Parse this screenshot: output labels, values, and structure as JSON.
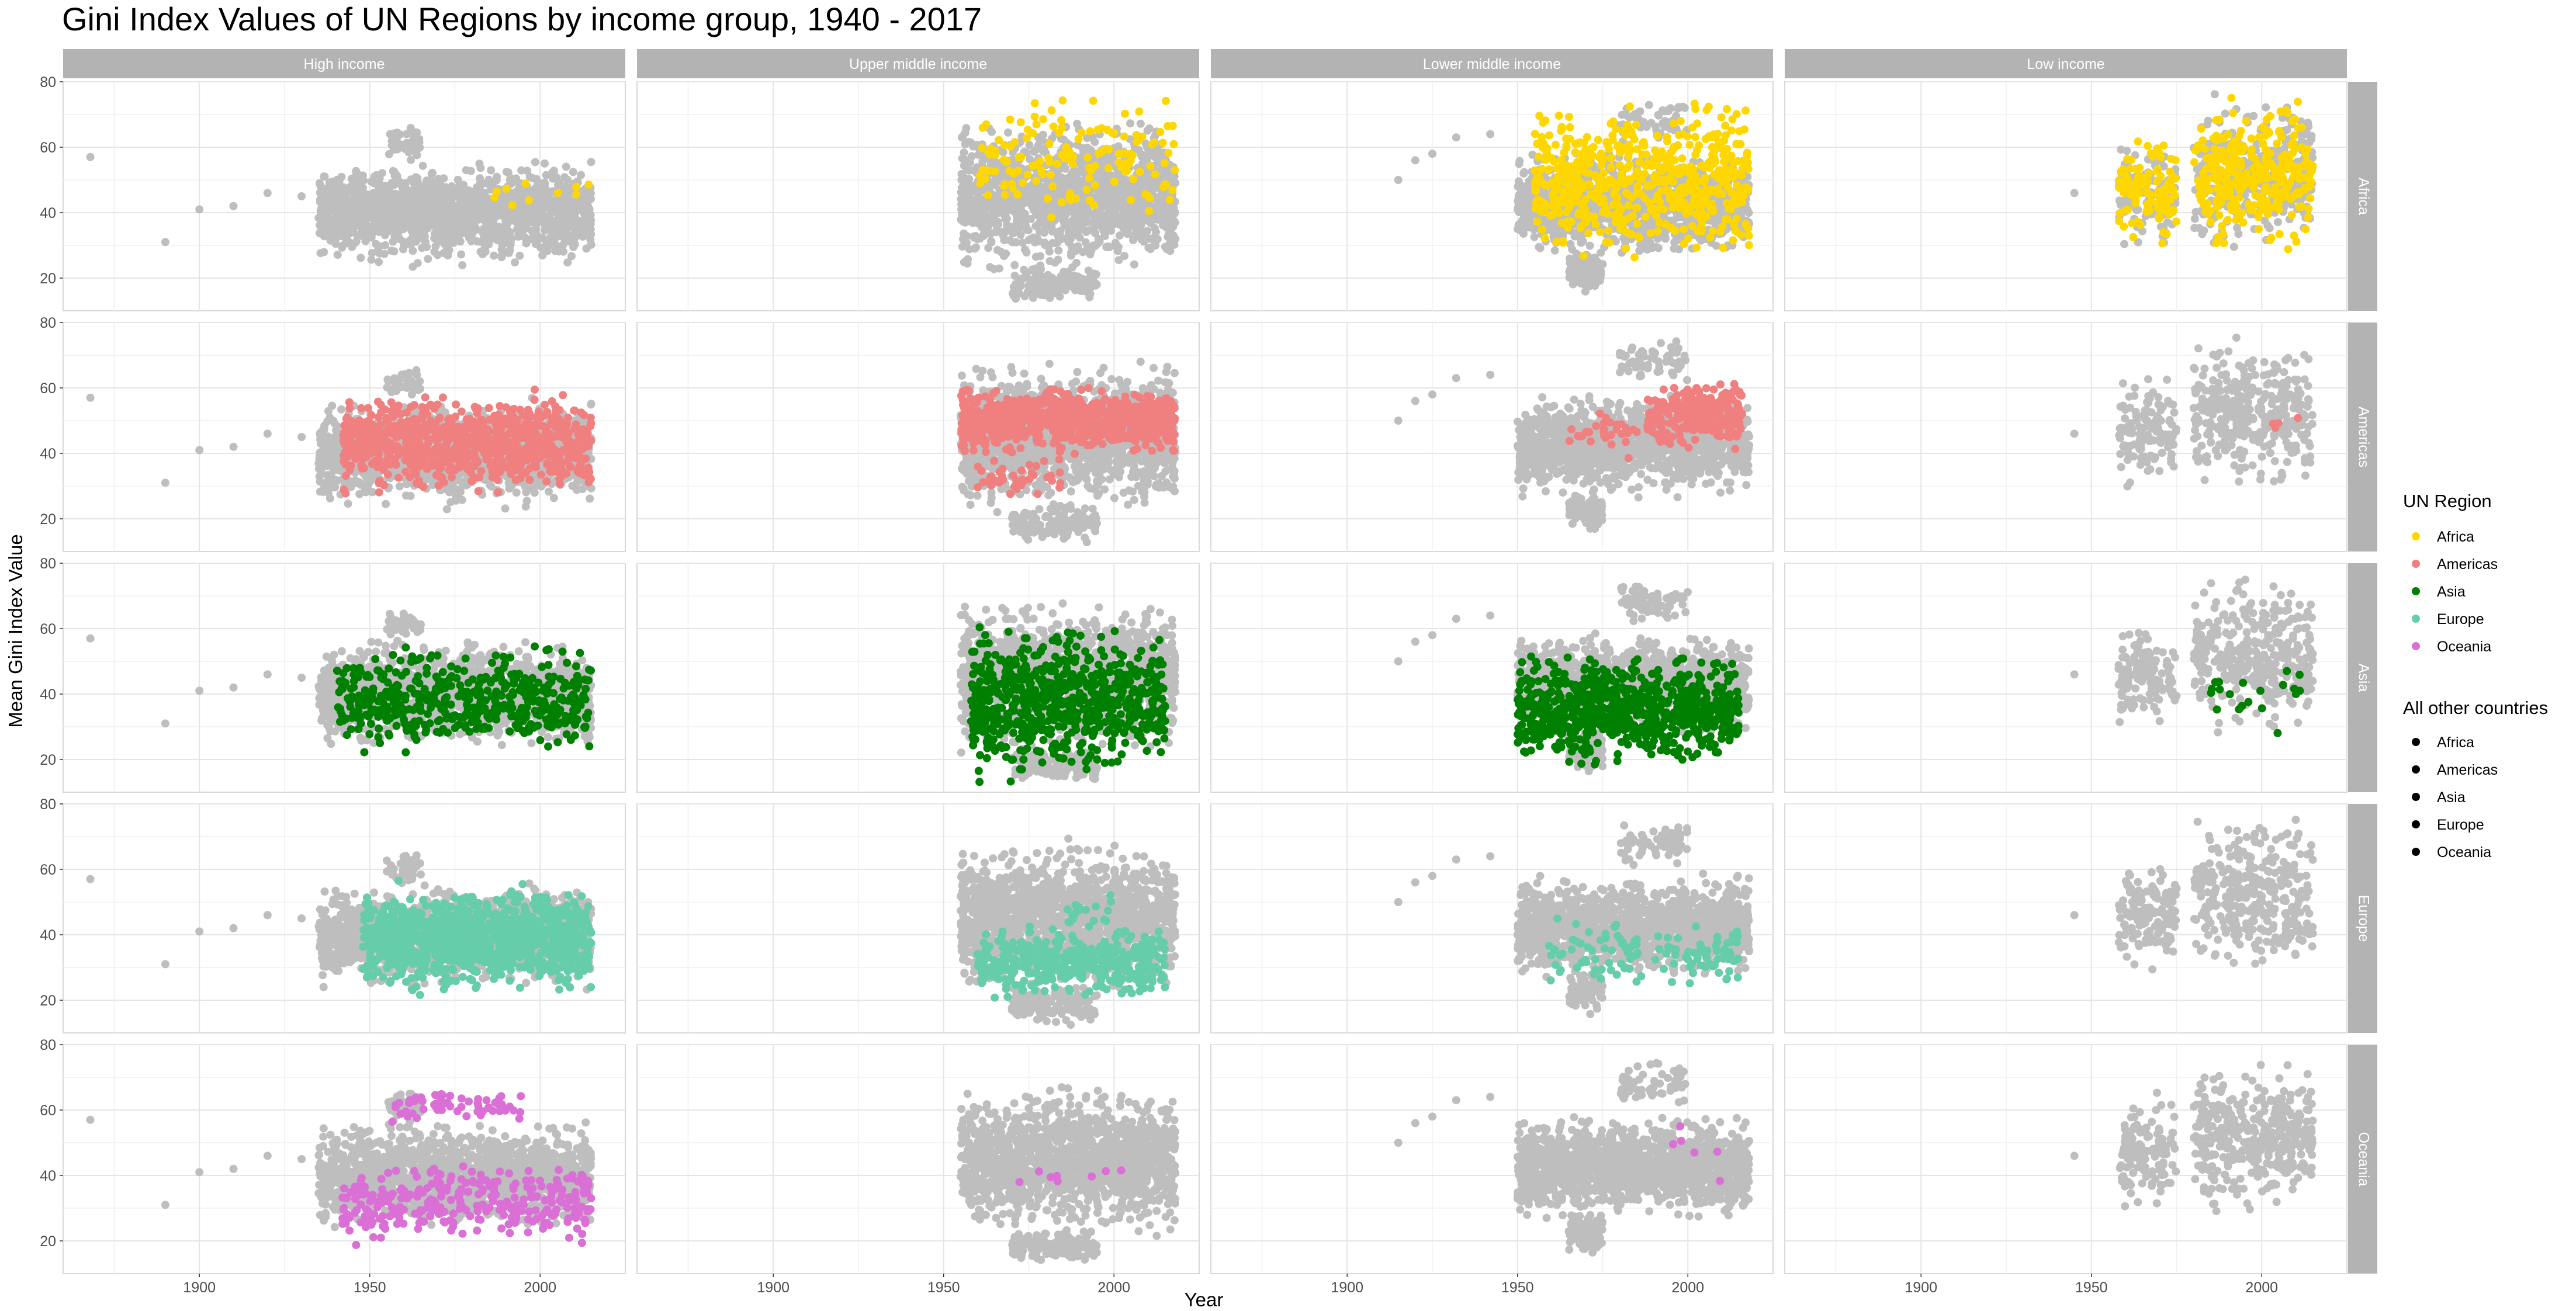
{
  "chart_data": {
    "type": "scatter",
    "title": "Gini Index Values of UN Regions by income group, 1940 - 2017",
    "xlabel": "Year",
    "ylabel": "Mean Gini Index Value",
    "xlim": [
      1860,
      2025
    ],
    "ylim": [
      10,
      80
    ],
    "x_ticks": [
      1900,
      1950,
      2000
    ],
    "y_ticks": [
      20,
      40,
      60,
      80
    ],
    "grid": true,
    "legend_position": "right",
    "facet_columns": [
      "High income",
      "Upper middle income",
      "Lower middle income",
      "Low income"
    ],
    "facet_rows": [
      "Africa",
      "Americas",
      "Asia",
      "Europe",
      "Oceania"
    ],
    "legend": {
      "title": "UN Region",
      "entries": [
        {
          "name": "Africa",
          "color": "#FFD700"
        },
        {
          "name": "Americas",
          "color": "#F08080"
        },
        {
          "name": "Asia",
          "color": "#008000"
        },
        {
          "name": "Europe",
          "color": "#66CDAA"
        },
        {
          "name": "Oceania",
          "color": "#DA70D6"
        }
      ]
    },
    "legend2": {
      "title": "All other countries",
      "entries": [
        "Africa",
        "Americas",
        "Asia",
        "Europe",
        "Oceania"
      ],
      "color": "#000000"
    },
    "background_color": "#BEBEBE",
    "background_points": {
      "High income": [
        [
          1868,
          57
        ],
        [
          1890,
          31
        ],
        [
          1900,
          41
        ],
        [
          1910,
          42
        ],
        [
          1920,
          46
        ],
        [
          1930,
          45
        ]
      ],
      "Upper middle income": [],
      "Lower middle income": [
        [
          1915,
          50
        ],
        [
          1920,
          56
        ],
        [
          1925,
          58
        ],
        [
          1932,
          63
        ],
        [
          1942,
          64
        ]
      ],
      "Low income": [
        [
          1945,
          46
        ]
      ]
    },
    "background_clouds": {
      "High income": [
        {
          "x": [
            1935,
            2015
          ],
          "y": [
            22,
            58
          ],
          "n": 1400
        },
        {
          "x": [
            1955,
            1965
          ],
          "y": [
            55,
            67
          ],
          "n": 40
        }
      ],
      "Upper middle income": [
        {
          "x": [
            1955,
            2018
          ],
          "y": [
            20,
            70
          ],
          "n": 1400
        },
        {
          "x": [
            1970,
            1995
          ],
          "y": [
            12,
            25
          ],
          "n": 150
        }
      ],
      "Lower middle income": [
        {
          "x": [
            1950,
            2018
          ],
          "y": [
            25,
            60
          ],
          "n": 1300
        },
        {
          "x": [
            1965,
            1975
          ],
          "y": [
            15,
            30
          ],
          "n": 100
        },
        {
          "x": [
            1980,
            2000
          ],
          "y": [
            60,
            76
          ],
          "n": 60
        }
      ],
      "Low income": [
        {
          "x": [
            1958,
            1975
          ],
          "y": [
            27,
            66
          ],
          "n": 130
        },
        {
          "x": [
            1980,
            2015
          ],
          "y": [
            25,
            78
          ],
          "n": 360
        }
      ]
    },
    "series": [
      {
        "name": "Africa",
        "row": "Africa",
        "color": "#FFD700",
        "clouds": {
          "High income": [
            {
              "x": [
                1985,
                2015
              ],
              "y": [
                40,
                52
              ],
              "n": 10
            }
          ],
          "Upper middle income": [
            {
              "x": [
                1960,
                2018
              ],
              "y": [
                35,
                78
              ],
              "n": 150
            }
          ],
          "Lower middle income": [
            {
              "x": [
                1955,
                2018
              ],
              "y": [
                22,
                77
              ],
              "n": 600
            }
          ],
          "Low income": [
            {
              "x": [
                1958,
                1975
              ],
              "y": [
                27,
                66
              ],
              "n": 110
            },
            {
              "x": [
                1980,
                2015
              ],
              "y": [
                25,
                78
              ],
              "n": 300
            }
          ]
        }
      },
      {
        "name": "Americas",
        "row": "Americas",
        "color": "#F08080",
        "clouds": {
          "High income": [
            {
              "x": [
                1942,
                2015
              ],
              "y": [
                26,
                60
              ],
              "n": 900
            }
          ],
          "Upper middle income": [
            {
              "x": [
                1955,
                2018
              ],
              "y": [
                38,
                62
              ],
              "n": 900
            },
            {
              "x": [
                1960,
                1985
              ],
              "y": [
                25,
                40
              ],
              "n": 40
            }
          ],
          "Lower middle income": [
            {
              "x": [
                1988,
                2016
              ],
              "y": [
                40,
                63
              ],
              "n": 300
            },
            {
              "x": [
                1965,
                1985
              ],
              "y": [
                38,
                55
              ],
              "n": 30
            }
          ],
          "Low income": [
            {
              "x": [
                2000,
                2012
              ],
              "y": [
                40,
                61
              ],
              "n": 4
            }
          ]
        }
      },
      {
        "name": "Asia",
        "row": "Asia",
        "color": "#008000",
        "clouds": {
          "High income": [
            {
              "x": [
                1940,
                2015
              ],
              "y": [
                20,
                57
              ],
              "n": 500
            }
          ],
          "Upper middle income": [
            {
              "x": [
                1958,
                2015
              ],
              "y": [
                12,
                63
              ],
              "n": 700
            }
          ],
          "Lower middle income": [
            {
              "x": [
                1950,
                2015
              ],
              "y": [
                15,
                55
              ],
              "n": 800
            }
          ],
          "Low income": [
            {
              "x": [
                1985,
                2012
              ],
              "y": [
                25,
                53
              ],
              "n": 20
            }
          ]
        }
      },
      {
        "name": "Europe",
        "row": "Europe",
        "color": "#66CDAA",
        "clouds": {
          "High income": [
            {
              "x": [
                1948,
                2015
              ],
              "y": [
                20,
                57
              ],
              "n": 1100
            }
          ],
          "Upper middle income": [
            {
              "x": [
                1960,
                2015
              ],
              "y": [
                18,
                45
              ],
              "n": 400
            },
            {
              "x": [
                1985,
                2000
              ],
              "y": [
                40,
                55
              ],
              "n": 20
            }
          ],
          "Lower middle income": [
            {
              "x": [
                1958,
                2015
              ],
              "y": [
                22,
                47
              ],
              "n": 120
            }
          ],
          "Low income": []
        }
      },
      {
        "name": "Oceania",
        "row": "Oceania",
        "color": "#DA70D6",
        "clouds": {
          "High income": [
            {
              "x": [
                1942,
                2015
              ],
              "y": [
                18,
                45
              ],
              "n": 300
            },
            {
              "x": [
                1955,
                1995
              ],
              "y": [
                55,
                67
              ],
              "n": 60
            }
          ],
          "Upper middle income": [
            {
              "x": [
                1970,
                2012
              ],
              "y": [
                35,
                46
              ],
              "n": 8
            }
          ],
          "Lower middle income": [
            {
              "x": [
                1995,
                2010
              ],
              "y": [
                36,
                64
              ],
              "n": 6
            }
          ],
          "Low income": []
        }
      }
    ]
  }
}
